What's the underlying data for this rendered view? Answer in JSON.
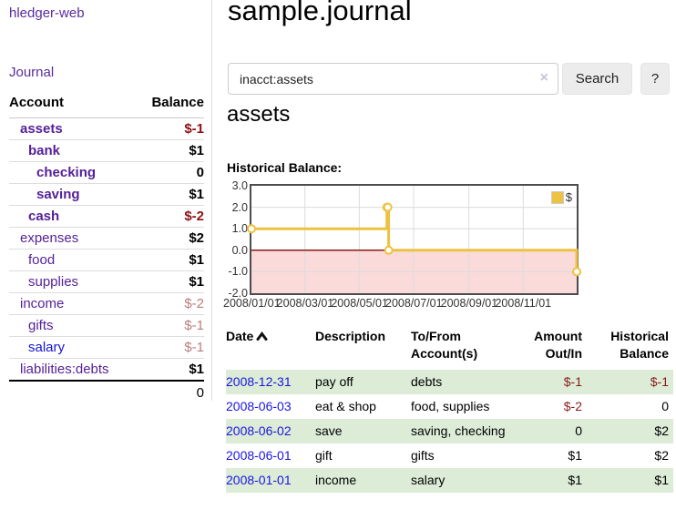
{
  "sidebar": {
    "app_title": "hledger-web",
    "journal_link": "Journal",
    "table": {
      "headers": {
        "account": "Account",
        "balance": "Balance"
      },
      "accounts": [
        {
          "name": "assets",
          "depth": 1,
          "bold": true,
          "balance": "$-1",
          "balance_style": "neg-strong"
        },
        {
          "name": "bank",
          "depth": 2,
          "bold": true,
          "balance": "$1",
          "balance_style": "pos"
        },
        {
          "name": "checking",
          "depth": 3,
          "bold": true,
          "balance": "0",
          "balance_style": "pos"
        },
        {
          "name": "saving",
          "depth": 3,
          "bold": true,
          "balance": "$1",
          "balance_style": "pos"
        },
        {
          "name": "cash",
          "depth": 2,
          "bold": true,
          "balance": "$-2",
          "balance_style": "neg-strong"
        },
        {
          "name": "expenses",
          "depth": 1,
          "bold": false,
          "balance": "$2",
          "balance_style": "pos"
        },
        {
          "name": "food",
          "depth": 2,
          "bold": false,
          "balance": "$1",
          "balance_style": "pos"
        },
        {
          "name": "supplies",
          "depth": 2,
          "bold": false,
          "balance": "$1",
          "balance_style": "pos"
        },
        {
          "name": "income",
          "depth": 1,
          "bold": false,
          "balance": "$-2",
          "balance_style": "neg-soft"
        },
        {
          "name": "gifts",
          "depth": 2,
          "bold": false,
          "balance": "$-1",
          "balance_style": "neg-soft"
        },
        {
          "name": "salary",
          "depth": 2,
          "bold": false,
          "balance": "$-1",
          "balance_style": "neg-soft",
          "link_color": "blue"
        },
        {
          "name": "liabilities:debts",
          "depth": 1,
          "bold": false,
          "balance": "$1",
          "balance_style": "pos",
          "last": true
        }
      ],
      "total": "0"
    }
  },
  "header": {
    "title": "sample.journal"
  },
  "search": {
    "value": "inacct:assets",
    "clear_icon": "×",
    "button_label": "Search",
    "help_label": "?"
  },
  "account_page": {
    "title": "assets",
    "chart_label": "Historical Balance:"
  },
  "chart_data": {
    "type": "line",
    "step": true,
    "title": "Historical Balance:",
    "series": [
      {
        "name": "$",
        "color": "#edc240",
        "points": [
          {
            "x": "2008-01-01",
            "y": 1
          },
          {
            "x": "2008-06-01",
            "y": 2
          },
          {
            "x": "2008-06-02",
            "y": 2
          },
          {
            "x": "2008-06-03",
            "y": 0
          },
          {
            "x": "2008-12-31",
            "y": -1
          }
        ]
      }
    ],
    "xlim": [
      "2008-01-01",
      "2008-12-31"
    ],
    "ylim": [
      -2,
      3
    ],
    "x_tick_dates": [
      "2008-01-01",
      "2008-03-01",
      "2008-05-01",
      "2008-07-01",
      "2008-09-01",
      "2008-11-01"
    ],
    "x_tick_labels": [
      "2008/01/01",
      "2008/03/01",
      "2008/05/01",
      "2008/07/01",
      "2008/09/01",
      "2008/11/01"
    ],
    "y_tick_labels": [
      "3.0",
      "2.0",
      "1.0",
      "0.0",
      "-1.0",
      "-2.0"
    ],
    "y_tick_values": [
      3,
      2,
      1,
      0,
      -1,
      -2
    ],
    "legend": {
      "label": "$",
      "position": "top-right",
      "swatch_color": "#edc240"
    },
    "grid": true,
    "gridline_color": "#dcdcdc",
    "negative_region_color": "#fbdada",
    "zero_line_color": "#8b1a1a",
    "plot_border_color": "#4c4c4c"
  },
  "register": {
    "columns": [
      {
        "label": "Date",
        "sorted": "ascending"
      },
      {
        "label": "Description"
      },
      {
        "label": "To/From Account(s)"
      },
      {
        "label": "Amount Out/In"
      },
      {
        "label": "Historical Balance"
      }
    ],
    "rows": [
      {
        "date": "2008-12-31",
        "description": "pay off",
        "accounts": "debts",
        "amount": "$-1",
        "amount_neg": true,
        "balance": "$-1",
        "balance_neg": true
      },
      {
        "date": "2008-06-03",
        "description": "eat & shop",
        "accounts": "food, supplies",
        "amount": "$-2",
        "amount_neg": true,
        "balance": "0",
        "balance_neg": false
      },
      {
        "date": "2008-06-02",
        "description": "save",
        "accounts": "saving, checking",
        "amount": "0",
        "amount_neg": false,
        "balance": "$2",
        "balance_neg": false
      },
      {
        "date": "2008-06-01",
        "description": "gift",
        "accounts": "gifts",
        "amount": "$1",
        "amount_neg": false,
        "balance": "$2",
        "balance_neg": false
      },
      {
        "date": "2008-01-01",
        "description": "income",
        "accounts": "salary",
        "amount": "$1",
        "amount_neg": false,
        "balance": "$1",
        "balance_neg": false
      }
    ]
  },
  "colors": {
    "link_purple": "#541f97",
    "link_blue": "#1a16e0",
    "negative_strong": "#8b1212",
    "negative_soft": "#bb7c7c",
    "row_stripe_green": "#dcecd7",
    "series_gold": "#edc240"
  }
}
